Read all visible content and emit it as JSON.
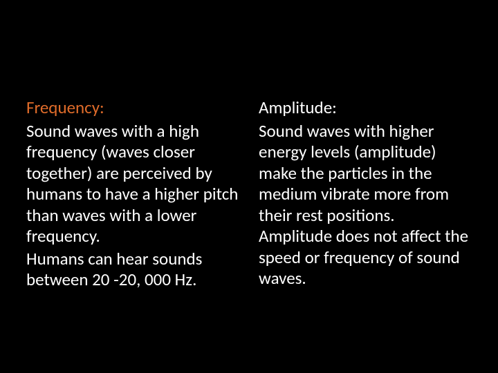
{
  "slide": {
    "background_color": "#000000",
    "text_color": "#ffffff",
    "accent_color": "#e06c2a",
    "font_family": "Calibri",
    "font_size_pt": 20,
    "columns": [
      {
        "heading": "Frequency:",
        "heading_color": "#e06c2a",
        "paragraphs": [
          "Sound waves with a high frequency (waves closer together) are perceived by humans to have a higher pitch than waves with a lower frequency.",
          "Humans can hear sounds between 20 -20, 000 Hz."
        ]
      },
      {
        "heading": "Amplitude:",
        "heading_color": "#ffffff",
        "paragraphs": [
          "Sound waves with higher energy levels (amplitude) make the particles in the medium vibrate more from their rest positions. Amplitude does not affect the speed or frequency of sound waves."
        ]
      }
    ]
  }
}
